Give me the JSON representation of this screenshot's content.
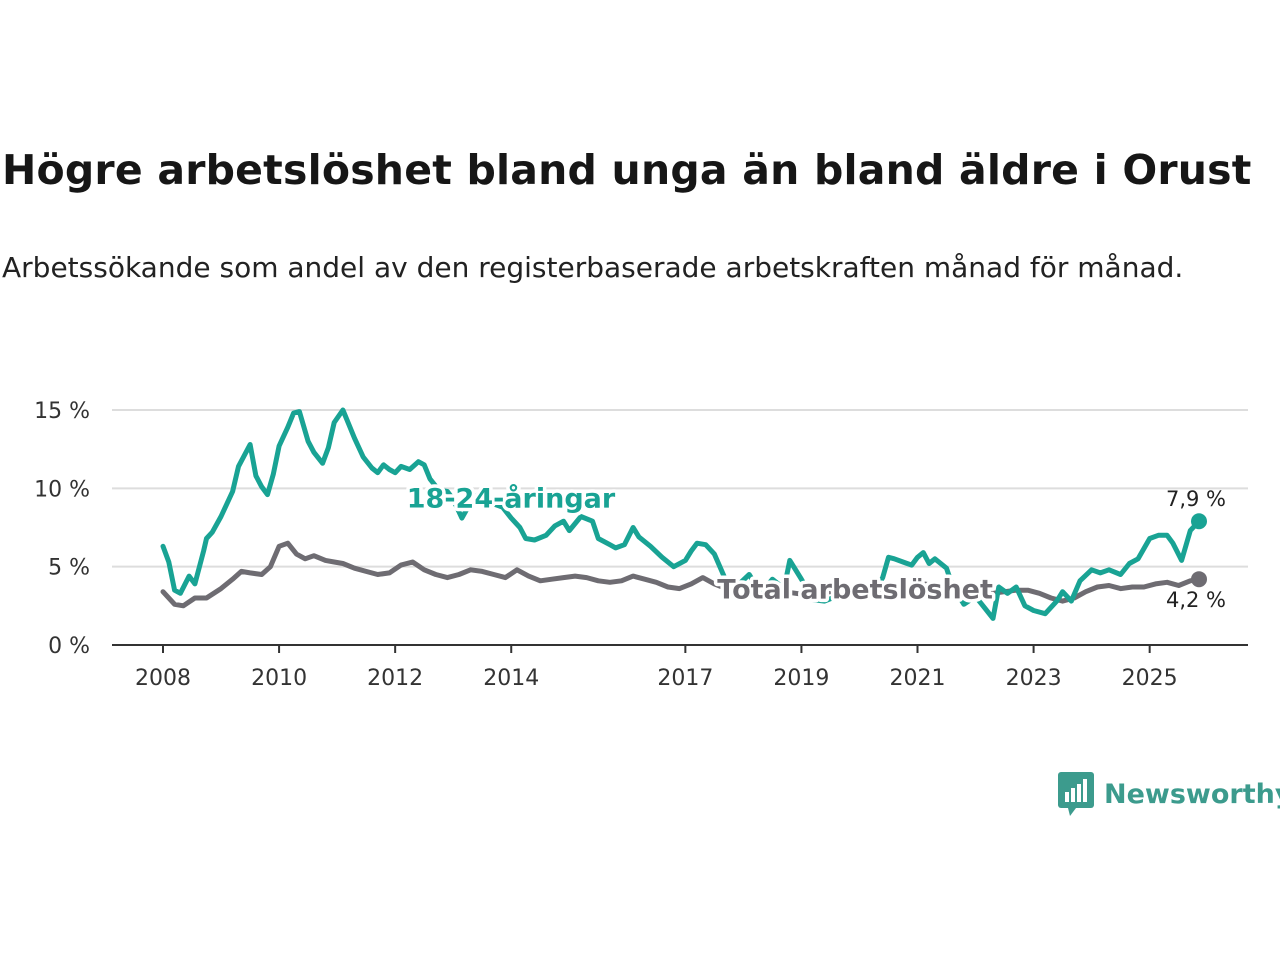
{
  "header": {
    "title": "Högre arbetslöshet bland unga än bland äldre i Orust",
    "subtitle": "Arbetssökande som andel av den registerbaserade arbetskraften månad för månad."
  },
  "brand": {
    "name": "Newsworthy"
  },
  "colors": {
    "youth": "#19a394",
    "total": "#6e6c72",
    "grid": "#dddddd",
    "axis": "#333333"
  },
  "chart_data": {
    "type": "line",
    "title": "Högre arbetslöshet bland unga än bland äldre i Orust",
    "xlabel": "",
    "ylabel": "",
    "xlim": [
      2008,
      2026.5
    ],
    "ylim": [
      0,
      15
    ],
    "y_ticks": [
      0,
      5,
      10,
      15
    ],
    "y_tick_labels": [
      "0 %",
      "5 %",
      "10 %",
      "15 %"
    ],
    "x_ticks": [
      2008,
      2010,
      2012,
      2014,
      2017,
      2019,
      2021,
      2023,
      2025
    ],
    "x_tick_labels": [
      "2008",
      "2010",
      "2012",
      "2014",
      "2017",
      "2019",
      "2021",
      "2023",
      "2025"
    ],
    "grid": true,
    "series": [
      {
        "name": "18-24-åringar",
        "label": "18-24-åringar",
        "end_label": "7,9 %",
        "x": [
          2008.0,
          2008.1,
          2008.2,
          2008.3,
          2008.45,
          2008.55,
          2008.7,
          2008.75,
          2008.85,
          2009.0,
          2009.2,
          2009.3,
          2009.5,
          2009.6,
          2009.7,
          2009.8,
          2009.9,
          2010.0,
          2010.15,
          2010.25,
          2010.35,
          2010.5,
          2010.6,
          2010.75,
          2010.85,
          2010.95,
          2011.1,
          2011.2,
          2011.3,
          2011.45,
          2011.6,
          2011.7,
          2011.8,
          2011.9,
          2012.0,
          2012.1,
          2012.25,
          2012.4,
          2012.5,
          2012.6,
          2012.75,
          2012.9,
          2013.0,
          2013.15,
          2013.3,
          2013.5,
          2013.7,
          2013.85,
          2014.0,
          2014.15,
          2014.25,
          2014.4,
          2014.6,
          2014.75,
          2014.9,
          2015.0,
          2015.2,
          2015.4,
          2015.5,
          2015.7,
          2015.8,
          2015.95,
          2016.1,
          2016.2,
          2016.4,
          2016.6,
          2016.8,
          2017.0,
          2017.1,
          2017.2,
          2017.35,
          2017.5,
          2017.7,
          2017.9,
          2018.1,
          2018.3,
          2018.5,
          2018.7,
          2018.8,
          2019.0,
          2019.2,
          2019.4,
          2019.6,
          2019.8,
          2020.0,
          2020.2,
          2020.4,
          2020.5,
          2020.6,
          2020.75,
          2020.9,
          2021.0,
          2021.1,
          2021.2,
          2021.3,
          2021.5,
          2021.6,
          2021.8,
          2022.0,
          2022.15,
          2022.3,
          2022.4,
          2022.55,
          2022.7,
          2022.85,
          2023.0,
          2023.2,
          2023.4,
          2023.5,
          2023.65,
          2023.8,
          2024.0,
          2024.15,
          2024.3,
          2024.5,
          2024.65,
          2024.8,
          2025.0,
          2025.15,
          2025.3,
          2025.4,
          2025.55,
          2025.7,
          2025.85
        ],
        "values": [
          6.3,
          5.3,
          3.5,
          3.3,
          4.4,
          3.9,
          6.0,
          6.8,
          7.2,
          8.2,
          9.8,
          11.4,
          12.8,
          10.8,
          10.1,
          9.6,
          10.9,
          12.7,
          13.9,
          14.8,
          14.9,
          13.0,
          12.3,
          11.6,
          12.6,
          14.2,
          15.0,
          14.1,
          13.2,
          12.0,
          11.3,
          11.0,
          11.5,
          11.2,
          11.0,
          11.4,
          11.2,
          11.7,
          11.5,
          10.6,
          9.9,
          9.8,
          9.3,
          8.1,
          9.1,
          9.9,
          9.0,
          8.8,
          8.1,
          7.5,
          6.8,
          6.7,
          7.0,
          7.6,
          7.9,
          7.3,
          8.2,
          7.9,
          6.8,
          6.4,
          6.2,
          6.4,
          7.5,
          6.9,
          6.3,
          5.6,
          5.0,
          5.4,
          6.0,
          6.5,
          6.4,
          5.8,
          4.1,
          3.8,
          4.5,
          3.3,
          4.2,
          3.6,
          5.4,
          4.2,
          2.9,
          2.8,
          3.1,
          3.0,
          3.8,
          3.1,
          4.3,
          5.6,
          5.5,
          5.3,
          5.1,
          5.6,
          5.9,
          5.2,
          5.5,
          4.9,
          3.8,
          2.6,
          3.1,
          2.4,
          1.7,
          3.7,
          3.3,
          3.7,
          2.5,
          2.2,
          2.0,
          2.8,
          3.4,
          2.8,
          4.1,
          4.8,
          4.6,
          4.8,
          4.5,
          5.2,
          5.5,
          6.8,
          7.0,
          7.0,
          6.5,
          5.4,
          7.3,
          7.9
        ]
      },
      {
        "name": "Total arbetslöshet",
        "label": "Total arbetslöshet",
        "end_label": "4,2 %",
        "x": [
          2008.0,
          2008.2,
          2008.35,
          2008.55,
          2008.75,
          2009.0,
          2009.2,
          2009.35,
          2009.5,
          2009.7,
          2009.85,
          2010.0,
          2010.15,
          2010.3,
          2010.45,
          2010.6,
          2010.8,
          2010.95,
          2011.1,
          2011.3,
          2011.5,
          2011.7,
          2011.9,
          2012.1,
          2012.3,
          2012.5,
          2012.7,
          2012.9,
          2013.1,
          2013.3,
          2013.5,
          2013.7,
          2013.9,
          2014.1,
          2014.3,
          2014.5,
          2014.7,
          2014.9,
          2015.1,
          2015.3,
          2015.5,
          2015.7,
          2015.9,
          2016.1,
          2016.3,
          2016.5,
          2016.7,
          2016.9,
          2017.1,
          2017.3,
          2017.5,
          2017.7,
          2017.9,
          2018.1,
          2018.3,
          2018.5,
          2018.7,
          2018.9,
          2019.1,
          2019.3,
          2019.5,
          2019.7,
          2019.9,
          2020.1,
          2020.3,
          2020.5,
          2020.7,
          2020.9,
          2021.1,
          2021.3,
          2021.5,
          2021.7,
          2021.9,
          2022.1,
          2022.3,
          2022.5,
          2022.7,
          2022.9,
          2023.1,
          2023.3,
          2023.5,
          2023.7,
          2023.9,
          2024.1,
          2024.3,
          2024.5,
          2024.7,
          2024.9,
          2025.1,
          2025.3,
          2025.5,
          2025.7,
          2025.85
        ],
        "values": [
          3.4,
          2.6,
          2.5,
          3.0,
          3.0,
          3.6,
          4.2,
          4.7,
          4.6,
          4.5,
          5.0,
          6.3,
          6.5,
          5.8,
          5.5,
          5.7,
          5.4,
          5.3,
          5.2,
          4.9,
          4.7,
          4.5,
          4.6,
          5.1,
          5.3,
          4.8,
          4.5,
          4.3,
          4.5,
          4.8,
          4.7,
          4.5,
          4.3,
          4.8,
          4.4,
          4.1,
          4.2,
          4.3,
          4.4,
          4.3,
          4.1,
          4.0,
          4.1,
          4.4,
          4.2,
          4.0,
          3.7,
          3.6,
          3.9,
          4.3,
          3.9,
          3.6,
          3.5,
          3.3,
          3.4,
          3.5,
          3.4,
          3.3,
          3.2,
          3.3,
          3.4,
          3.5,
          3.6,
          3.7,
          3.6,
          3.5,
          3.6,
          3.8,
          3.9,
          3.8,
          3.7,
          3.6,
          3.5,
          3.4,
          3.3,
          3.4,
          3.5,
          3.5,
          3.3,
          3.0,
          2.8,
          3.0,
          3.4,
          3.7,
          3.8,
          3.6,
          3.7,
          3.7,
          3.9,
          4.0,
          3.8,
          4.1,
          4.2
        ]
      }
    ]
  }
}
